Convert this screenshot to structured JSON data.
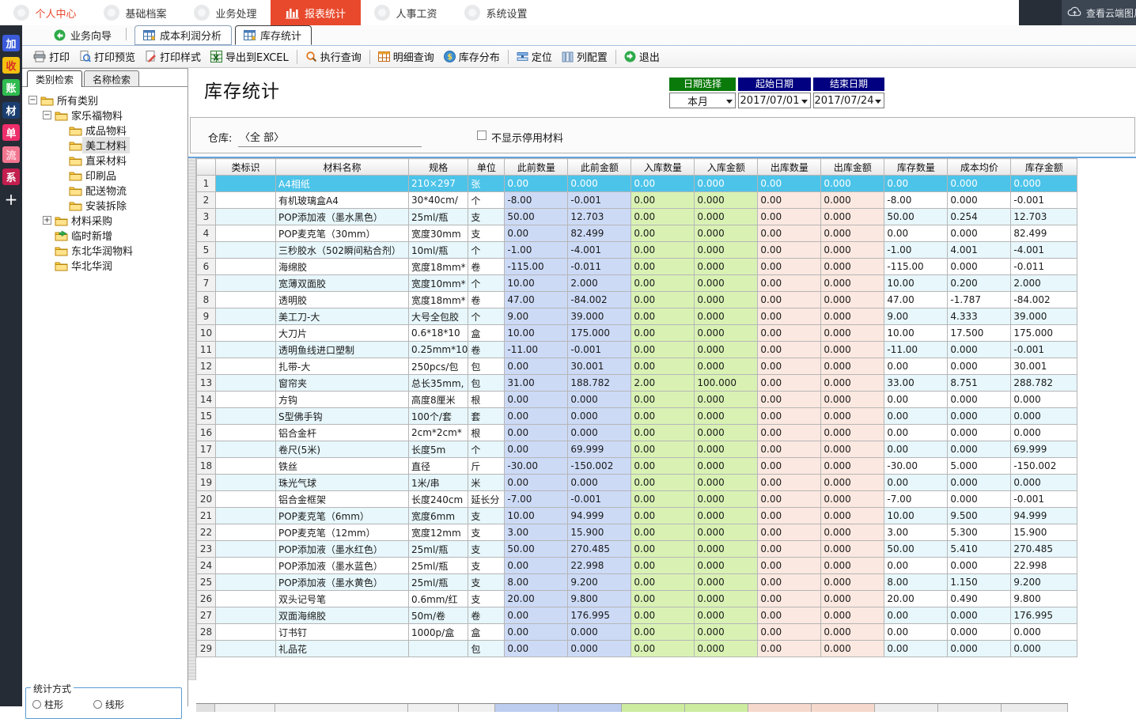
{
  "top_nav": {
    "tabs": [
      {
        "label": "个人中心",
        "active": false
      },
      {
        "label": "基础档案",
        "active": false
      },
      {
        "label": "业务处理",
        "active": false
      },
      {
        "label": "报表统计",
        "active": true
      },
      {
        "label": "人事工资",
        "active": false
      },
      {
        "label": "系统设置",
        "active": false
      }
    ],
    "cloud_button_label": "查看云端图片"
  },
  "rail": {
    "items": [
      {
        "label": "加",
        "bg": "#3b5bdb",
        "fg": "#ffffff"
      },
      {
        "label": "收",
        "bg": "#f3c110",
        "fg": "#d93025"
      },
      {
        "label": "账",
        "bg": "#2fbb4f",
        "fg": "#ffffff"
      },
      {
        "label": "材",
        "bg": "#1b3e70",
        "fg": "#ffffff"
      },
      {
        "label": "单",
        "bg": "#ee2e6a",
        "fg": "#ffffff"
      },
      {
        "label": "流",
        "bg": "#f2758f",
        "fg": "#ffd2dc"
      },
      {
        "label": "系",
        "bg": "#c21e4e",
        "fg": "#ffffff"
      },
      {
        "label": "+",
        "bg": "transparent",
        "fg": "#ffffff"
      }
    ]
  },
  "doc_tabs": {
    "items": [
      {
        "label": "业务向导",
        "icon": "wizard-icon",
        "boxed": false,
        "active": false
      },
      {
        "label": "成本利润分析",
        "icon": "grid-tab-icon",
        "boxed": true,
        "active": false
      },
      {
        "label": "库存统计",
        "icon": "grid-tab-icon",
        "boxed": true,
        "active": true
      }
    ]
  },
  "toolbar": {
    "buttons": [
      {
        "label": "打印",
        "icon": "printer-icon"
      },
      {
        "label": "打印预览",
        "icon": "print-preview-icon"
      },
      {
        "label": "打印样式",
        "icon": "print-style-icon"
      },
      {
        "label": "导出到EXCEL",
        "icon": "excel-export-icon"
      },
      {
        "label": "执行查询",
        "icon": "search-icon"
      },
      {
        "label": "明细查询",
        "icon": "detail-table-icon"
      },
      {
        "label": "库存分布",
        "icon": "distribution-icon"
      },
      {
        "label": "定位",
        "icon": "locate-icon"
      },
      {
        "label": "列配置",
        "icon": "columns-config-icon"
      },
      {
        "label": "退出",
        "icon": "exit-icon"
      }
    ]
  },
  "sidebar": {
    "tabs": [
      {
        "label": "类别检索",
        "active": true
      },
      {
        "label": "名称检索",
        "active": false
      }
    ],
    "tree": [
      {
        "label": "所有类别",
        "depth": 0,
        "expander": "minus",
        "icon": "folder-icon",
        "selected": false
      },
      {
        "label": "家乐福物料",
        "depth": 1,
        "expander": "minus",
        "icon": "folder-icon",
        "selected": false
      },
      {
        "label": "成品物料",
        "depth": 2,
        "expander": "",
        "icon": "folder-icon",
        "selected": false
      },
      {
        "label": "美工材料",
        "depth": 2,
        "expander": "",
        "icon": "folder-icon",
        "selected": true
      },
      {
        "label": "直采材料",
        "depth": 2,
        "expander": "",
        "icon": "folder-icon",
        "selected": false
      },
      {
        "label": "印刷品",
        "depth": 2,
        "expander": "",
        "icon": "folder-icon",
        "selected": false
      },
      {
        "label": "配送物流",
        "depth": 2,
        "expander": "",
        "icon": "folder-icon",
        "selected": false
      },
      {
        "label": "安装拆除",
        "depth": 2,
        "expander": "",
        "icon": "folder-icon",
        "selected": false
      },
      {
        "label": "材料采购",
        "depth": 1,
        "expander": "plus",
        "icon": "folder-icon",
        "selected": false
      },
      {
        "label": "临时新增",
        "depth": 1,
        "expander": "",
        "icon": "folder-new-icon",
        "selected": false
      },
      {
        "label": "东北华润物料",
        "depth": 1,
        "expander": "",
        "icon": "folder-icon",
        "selected": false
      },
      {
        "label": "华北华润",
        "depth": 1,
        "expander": "",
        "icon": "folder-icon",
        "selected": false
      }
    ],
    "stats_group": {
      "title": "统计方式",
      "options": [
        "柱形",
        "线形"
      ]
    }
  },
  "content": {
    "title": "库存统计",
    "date_filter": {
      "headers": [
        "日期选择",
        "起始日期",
        "结束日期"
      ],
      "header_colors": [
        "#0a7a0a",
        "#000080",
        "#000080"
      ],
      "values": [
        "本月",
        "2017/07/01",
        "2017/07/24"
      ]
    },
    "warehouse_label": "仓库:",
    "warehouse_value": "〈全 部〉",
    "hide_disabled_label": "不显示停用材料"
  },
  "table": {
    "columns": [
      "类标识",
      "材料名称",
      "规格",
      "单位",
      "此前数量",
      "此前金额",
      "入库数量",
      "入库金额",
      "出库数量",
      "出库金额",
      "库存数量",
      "成本均价",
      "库存金额"
    ],
    "rows": [
      {
        "selected": true,
        "cells": [
          "",
          "A4相纸",
          "210×297",
          "张",
          "0.00",
          "0.000",
          "0.00",
          "0.000",
          "0.00",
          "0.000",
          "0.00",
          "0.000",
          "0.000"
        ]
      },
      {
        "selected": false,
        "cells": [
          "",
          "有机玻璃盒A4",
          "30*40cm/",
          "个",
          "-8.00",
          "-0.001",
          "0.00",
          "0.000",
          "0.00",
          "0.000",
          "-8.00",
          "0.000",
          "-0.001"
        ]
      },
      {
        "selected": false,
        "cells": [
          "",
          "POP添加液（墨水黑色）",
          "25ml/瓶",
          "支",
          "50.00",
          "12.703",
          "0.00",
          "0.000",
          "0.00",
          "0.000",
          "50.00",
          "0.254",
          "12.703"
        ]
      },
      {
        "selected": false,
        "cells": [
          "",
          "POP麦克笔（30mm）",
          "宽度30mm",
          "支",
          "0.00",
          "82.499",
          "0.00",
          "0.000",
          "0.00",
          "0.000",
          "0.00",
          "0.000",
          "82.499"
        ]
      },
      {
        "selected": false,
        "cells": [
          "",
          "三秒胶水（502瞬间粘合剂）",
          "10ml/瓶",
          "个",
          "-1.00",
          "-4.001",
          "0.00",
          "0.000",
          "0.00",
          "0.000",
          "-1.00",
          "4.001",
          "-4.001"
        ]
      },
      {
        "selected": false,
        "cells": [
          "",
          "海绵胶",
          "宽度18mm*",
          "卷",
          "-115.00",
          "-0.011",
          "0.00",
          "0.000",
          "0.00",
          "0.000",
          "-115.00",
          "0.000",
          "-0.011"
        ]
      },
      {
        "selected": false,
        "cells": [
          "",
          "宽薄双面胶",
          "宽度10mm*",
          "个",
          "10.00",
          "2.000",
          "0.00",
          "0.000",
          "0.00",
          "0.000",
          "10.00",
          "0.200",
          "2.000"
        ]
      },
      {
        "selected": false,
        "cells": [
          "",
          "透明胶",
          "宽度18mm*",
          "卷",
          "47.00",
          "-84.002",
          "0.00",
          "0.000",
          "0.00",
          "0.000",
          "47.00",
          "-1.787",
          "-84.002"
        ]
      },
      {
        "selected": false,
        "cells": [
          "",
          "美工刀-大",
          "大号全包胶",
          "个",
          "9.00",
          "39.000",
          "0.00",
          "0.000",
          "0.00",
          "0.000",
          "9.00",
          "4.333",
          "39.000"
        ]
      },
      {
        "selected": false,
        "cells": [
          "",
          "大刀片",
          "0.6*18*10",
          "盒",
          "10.00",
          "175.000",
          "0.00",
          "0.000",
          "0.00",
          "0.000",
          "10.00",
          "17.500",
          "175.000"
        ]
      },
      {
        "selected": false,
        "cells": [
          "",
          "透明鱼线进口塑制",
          "0.25mm*10",
          "卷",
          "-11.00",
          "-0.001",
          "0.00",
          "0.000",
          "0.00",
          "0.000",
          "-11.00",
          "0.000",
          "-0.001"
        ]
      },
      {
        "selected": false,
        "cells": [
          "",
          "扎带-大",
          "250pcs/包",
          "包",
          "0.00",
          "30.001",
          "0.00",
          "0.000",
          "0.00",
          "0.000",
          "0.00",
          "0.000",
          "30.001"
        ]
      },
      {
        "selected": false,
        "cells": [
          "",
          "窗帘夹",
          "总长35mm,",
          "包",
          "31.00",
          "188.782",
          "2.00",
          "100.000",
          "0.00",
          "0.000",
          "33.00",
          "8.751",
          "288.782"
        ]
      },
      {
        "selected": false,
        "cells": [
          "",
          "方钩",
          "高度8厘米",
          "根",
          "0.00",
          "0.000",
          "0.00",
          "0.000",
          "0.00",
          "0.000",
          "0.00",
          "0.000",
          "0.000"
        ]
      },
      {
        "selected": false,
        "cells": [
          "",
          "S型佛手钩",
          "100个/套",
          "套",
          "0.00",
          "0.000",
          "0.00",
          "0.000",
          "0.00",
          "0.000",
          "0.00",
          "0.000",
          "0.000"
        ]
      },
      {
        "selected": false,
        "cells": [
          "",
          "铝合金杆",
          "2cm*2cm*",
          "根",
          "0.00",
          "0.000",
          "0.00",
          "0.000",
          "0.00",
          "0.000",
          "0.00",
          "0.000",
          "0.000"
        ]
      },
      {
        "selected": false,
        "cells": [
          "",
          "卷尺(5米)",
          "长度5m",
          "个",
          "0.00",
          "69.999",
          "0.00",
          "0.000",
          "0.00",
          "0.000",
          "0.00",
          "0.000",
          "69.999"
        ]
      },
      {
        "selected": false,
        "cells": [
          "",
          "铁丝",
          "直径",
          "斤",
          "-30.00",
          "-150.002",
          "0.00",
          "0.000",
          "0.00",
          "0.000",
          "-30.00",
          "5.000",
          "-150.002"
        ]
      },
      {
        "selected": false,
        "cells": [
          "",
          "珠光气球",
          "1米/串",
          "米",
          "0.00",
          "0.000",
          "0.00",
          "0.000",
          "0.00",
          "0.000",
          "0.00",
          "0.000",
          "0.000"
        ]
      },
      {
        "selected": false,
        "cells": [
          "",
          "铝合金框架",
          "长度240cm",
          "延长分",
          "-7.00",
          "-0.001",
          "0.00",
          "0.000",
          "0.00",
          "0.000",
          "-7.00",
          "0.000",
          "-0.001"
        ]
      },
      {
        "selected": false,
        "cells": [
          "",
          "POP麦克笔（6mm）",
          "宽度6mm",
          "支",
          "10.00",
          "94.999",
          "0.00",
          "0.000",
          "0.00",
          "0.000",
          "10.00",
          "9.500",
          "94.999"
        ]
      },
      {
        "selected": false,
        "cells": [
          "",
          "POP麦克笔（12mm）",
          "宽度12mm",
          "支",
          "3.00",
          "15.900",
          "0.00",
          "0.000",
          "0.00",
          "0.000",
          "3.00",
          "5.300",
          "15.900"
        ]
      },
      {
        "selected": false,
        "cells": [
          "",
          "POP添加液（墨水红色）",
          "25ml/瓶",
          "支",
          "50.00",
          "270.485",
          "0.00",
          "0.000",
          "0.00",
          "0.000",
          "50.00",
          "5.410",
          "270.485"
        ]
      },
      {
        "selected": false,
        "cells": [
          "",
          "POP添加液（墨水蓝色）",
          "25ml/瓶",
          "支",
          "0.00",
          "22.998",
          "0.00",
          "0.000",
          "0.00",
          "0.000",
          "0.00",
          "0.000",
          "22.998"
        ]
      },
      {
        "selected": false,
        "cells": [
          "",
          "POP添加液（墨水黄色）",
          "25ml/瓶",
          "支",
          "8.00",
          "9.200",
          "0.00",
          "0.000",
          "0.00",
          "0.000",
          "8.00",
          "1.150",
          "9.200"
        ]
      },
      {
        "selected": false,
        "cells": [
          "",
          "双头记号笔",
          "0.6mm/红",
          "支",
          "20.00",
          "9.800",
          "0.00",
          "0.000",
          "0.00",
          "0.000",
          "20.00",
          "0.490",
          "9.800"
        ]
      },
      {
        "selected": false,
        "cells": [
          "",
          "双面海绵胶",
          "50m/卷",
          "卷",
          "0.00",
          "176.995",
          "0.00",
          "0.000",
          "0.00",
          "0.000",
          "0.00",
          "0.000",
          "176.995"
        ]
      },
      {
        "selected": false,
        "cells": [
          "",
          "订书钉",
          "1000p/盒",
          "盒",
          "0.00",
          "0.000",
          "0.00",
          "0.000",
          "0.00",
          "0.000",
          "0.00",
          "0.000",
          "0.000"
        ]
      },
      {
        "selected": false,
        "cells": [
          "",
          "礼品花",
          "",
          "包",
          "0.00",
          "0.000",
          "0.00",
          "0.000",
          "0.00",
          "0.000",
          "0.00",
          "0.000",
          "0.000"
        ]
      }
    ]
  },
  "colors": {
    "active_nav_bg": "#e8492c",
    "selected_row_bg": "#4cc3e9",
    "col_prev_bg": "#ccdaf6",
    "col_in_bg": "#d9f2b4",
    "col_out_bg": "#fbe8e0",
    "row_tint_bg": "#e7f7fc",
    "rail_bg": "#262c36",
    "dark_corner_bg": "#272e38"
  }
}
